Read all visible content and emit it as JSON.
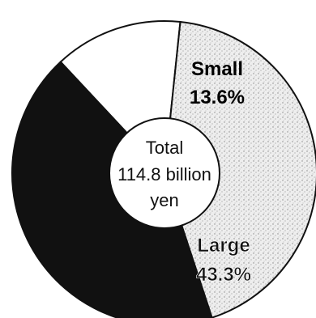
{
  "chart_data": {
    "type": "pie",
    "style": "donut",
    "center_label": [
      "Total",
      "114.8 billion",
      "yen"
    ],
    "slices": [
      {
        "label": "Small",
        "value_label": "13.6%",
        "value": 13.6,
        "color": "#ffffff",
        "pattern": "none"
      },
      {
        "label": "Large",
        "value_label": "43.3%",
        "value": 43.3,
        "color": "#d9d9d9",
        "pattern": "light-stipple"
      },
      {
        "label": "",
        "value_label": "",
        "value": 43.1,
        "color": "#111111",
        "pattern": "dark"
      }
    ]
  }
}
